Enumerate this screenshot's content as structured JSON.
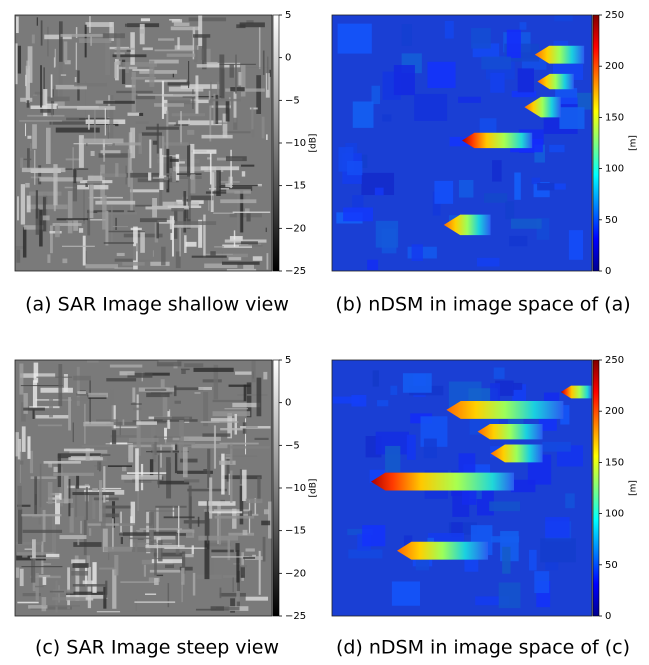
{
  "chart_data": [
    {
      "type": "image",
      "caption": "(a) SAR Image shallow view",
      "colormap": "gray",
      "colorbar_label": "[dB]",
      "clim": [
        -25,
        5
      ],
      "cticks": [
        5,
        0,
        {
          "value": -5,
          "label": "−5"
        },
        {
          "value": -10,
          "label": "−10"
        },
        {
          "value": -15,
          "label": "−15"
        },
        {
          "value": -20,
          "label": "−20"
        },
        {
          "value": -25,
          "label": "−25"
        }
      ]
    },
    {
      "type": "image",
      "caption": "(b) nDSM in image space of (a)",
      "colormap": "jet",
      "colorbar_label": "[m]",
      "clim": [
        0,
        250
      ],
      "cticks": [
        0,
        50,
        100,
        150,
        200,
        250
      ]
    },
    {
      "type": "image",
      "caption": "(c) SAR Image steep view",
      "colormap": "gray",
      "colorbar_label": "[dB]",
      "clim": [
        -25,
        5
      ],
      "cticks": [
        5,
        0,
        {
          "value": -5,
          "label": "−5"
        },
        {
          "value": -10,
          "label": "−10"
        },
        {
          "value": -15,
          "label": "−15"
        },
        {
          "value": -20,
          "label": "−20"
        },
        {
          "value": -25,
          "label": "−25"
        }
      ]
    },
    {
      "type": "image",
      "caption": "(d) nDSM in image space of (c)",
      "colormap": "jet",
      "colorbar_label": "[m]",
      "clim": [
        0,
        250
      ],
      "cticks": [
        0,
        50,
        100,
        150,
        200,
        250
      ]
    }
  ]
}
